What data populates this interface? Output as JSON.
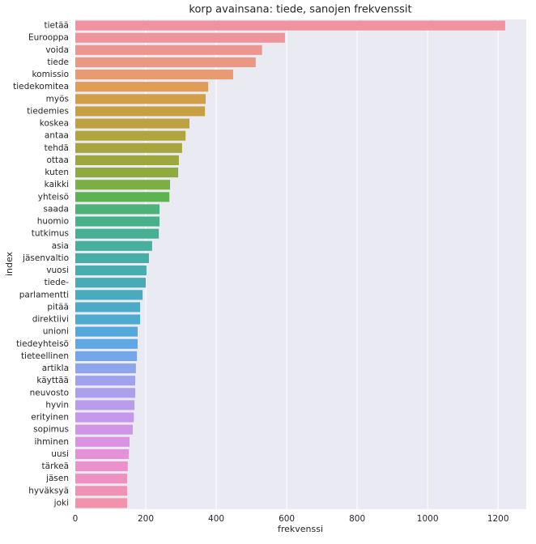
{
  "chart_data": {
    "type": "barh",
    "title": "korp avainsana: tiede, sanojen frekvenssit",
    "x_label": "frekvenssi",
    "y_label": "index",
    "categories": [
      "tietää",
      "Eurooppa",
      "voida",
      "tiede",
      "komissio",
      "tiedekomitea",
      "myös",
      "tiedemies",
      "koskea",
      "antaa",
      "tehdä",
      "ottaa",
      "kuten",
      "kaikki",
      "yhteisö",
      "saada",
      "huomio",
      "tutkimus",
      "asia",
      "jäsenvaltio",
      "vuosi",
      "tiede-",
      "parlamentti",
      "pitää",
      "direktiivi",
      "unioni",
      "tiedeyhteisö",
      "tieteellinen",
      "artikla",
      "käyttää",
      "neuvosto",
      "hyvin",
      "erityinen",
      "sopimus",
      "ihminen",
      "uusi",
      "tärkeä",
      "jäsen",
      "hyväksyä",
      "joki"
    ],
    "values": [
      1220,
      595,
      530,
      512,
      448,
      377,
      370,
      368,
      324,
      313,
      303,
      294,
      292,
      269,
      267,
      239,
      239,
      237,
      218,
      209,
      202,
      200,
      191,
      184,
      184,
      177,
      177,
      175,
      172,
      170,
      170,
      168,
      166,
      163,
      154,
      152,
      149,
      147,
      147,
      147
    ],
    "colors": [
      "#f0939f",
      "#ee949a",
      "#ec9690",
      "#ea9883",
      "#e89a73",
      "#e09d55",
      "#d29f48",
      "#c7a043",
      "#bca240",
      "#b2a43e",
      "#a7a63d",
      "#9ca83d",
      "#8fab3e",
      "#7dae44",
      "#5cb34f",
      "#4cb27a",
      "#48b18a",
      "#47b094",
      "#46af9e",
      "#46aea6",
      "#47adae",
      "#48acb6",
      "#4aabbe",
      "#4caac7",
      "#4faad0",
      "#55a9da",
      "#60a8e3",
      "#74a6ea",
      "#8ea5ec",
      "#a0a3ec",
      "#ae9fec",
      "#bb9bec",
      "#c698eb",
      "#d195e8",
      "#dc92e2",
      "#e591d8",
      "#eb91cc",
      "#ee91c1",
      "#ef92b6",
      "#f093ab"
    ],
    "xlim": [
      0,
      1280
    ],
    "xticks": [
      0,
      200,
      400,
      600,
      800,
      1000,
      1200
    ],
    "grid": true
  }
}
